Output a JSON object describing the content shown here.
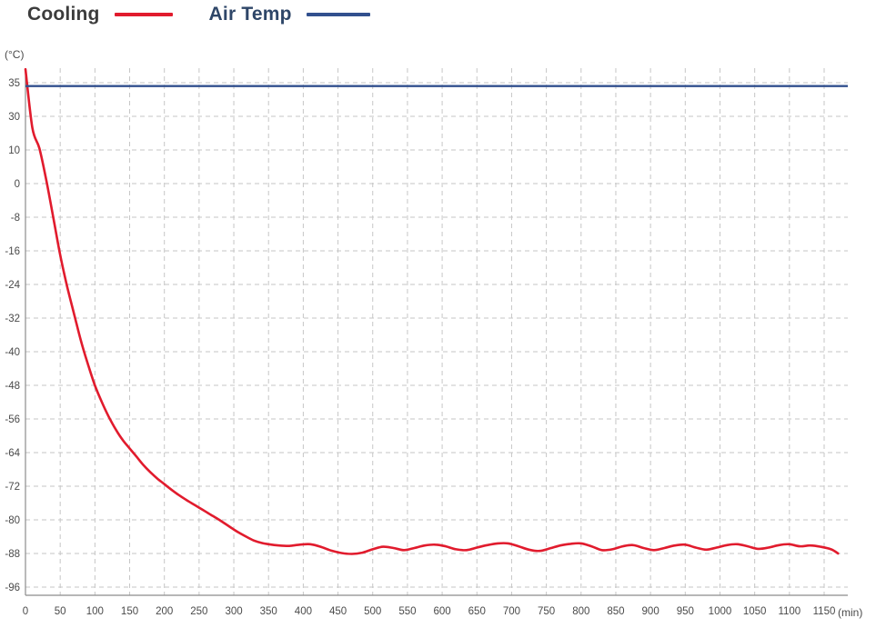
{
  "legend": {
    "cooling_label": "Cooling",
    "air_temp_label": "Air Temp",
    "cooling_text_color": "#3c3c3c",
    "air_temp_text_color": "#2e4668"
  },
  "axes": {
    "y_unit": "(°C)",
    "x_unit": "(min)"
  },
  "colors": {
    "cooling": "#e11b2d",
    "air_temp": "#32508e",
    "grid": "#c6c6c6",
    "axis": "#8c8c8c",
    "tick_text": "#4a4a4a"
  },
  "chart_data": {
    "type": "line",
    "title": "",
    "xlabel": "(min)",
    "ylabel": "(°C)",
    "grid": "dashed",
    "legend_position": "top-left",
    "x_ticks": [
      0,
      50,
      100,
      150,
      200,
      250,
      300,
      350,
      400,
      450,
      500,
      550,
      600,
      650,
      700,
      750,
      800,
      850,
      900,
      950,
      1000,
      1050,
      1100,
      1150
    ],
    "y_ticks": [
      35,
      30,
      10,
      0,
      -8,
      -16,
      -24,
      -32,
      -40,
      -48,
      -56,
      -64,
      -72,
      -80,
      -88,
      -96
    ],
    "series": [
      {
        "name": "Cooling",
        "color_key": "cooling",
        "points": [
          [
            0,
            37
          ],
          [
            10,
            23
          ],
          [
            20,
            11
          ],
          [
            30,
            1
          ],
          [
            40,
            -8
          ],
          [
            50,
            -17
          ],
          [
            60,
            -24.5
          ],
          [
            70,
            -31
          ],
          [
            80,
            -37.5
          ],
          [
            90,
            -43
          ],
          [
            100,
            -48
          ],
          [
            110,
            -52
          ],
          [
            120,
            -55.5
          ],
          [
            130,
            -58.5
          ],
          [
            140,
            -61
          ],
          [
            150,
            -63
          ],
          [
            160,
            -65
          ],
          [
            170,
            -67
          ],
          [
            180,
            -68.7
          ],
          [
            190,
            -70.2
          ],
          [
            200,
            -71.5
          ],
          [
            210,
            -72.8
          ],
          [
            220,
            -74
          ],
          [
            230,
            -75.1
          ],
          [
            240,
            -76.1
          ],
          [
            250,
            -77.1
          ],
          [
            260,
            -78.1
          ],
          [
            270,
            -79.1
          ],
          [
            280,
            -80.1
          ],
          [
            290,
            -81.2
          ],
          [
            300,
            -82.3
          ],
          [
            310,
            -83.3
          ],
          [
            320,
            -84.2
          ],
          [
            330,
            -85
          ],
          [
            340,
            -85.5
          ],
          [
            350,
            -85.8
          ],
          [
            365,
            -86.1
          ],
          [
            380,
            -86.2
          ],
          [
            395,
            -85.9
          ],
          [
            410,
            -85.8
          ],
          [
            425,
            -86.4
          ],
          [
            440,
            -87.3
          ],
          [
            455,
            -87.9
          ],
          [
            470,
            -88.1
          ],
          [
            485,
            -87.8
          ],
          [
            500,
            -87
          ],
          [
            515,
            -86.4
          ],
          [
            530,
            -86.7
          ],
          [
            545,
            -87.2
          ],
          [
            560,
            -86.7
          ],
          [
            575,
            -86.1
          ],
          [
            590,
            -85.9
          ],
          [
            605,
            -86.3
          ],
          [
            620,
            -87
          ],
          [
            635,
            -87.2
          ],
          [
            650,
            -86.6
          ],
          [
            665,
            -86
          ],
          [
            680,
            -85.6
          ],
          [
            695,
            -85.6
          ],
          [
            710,
            -86.3
          ],
          [
            725,
            -87.1
          ],
          [
            740,
            -87.4
          ],
          [
            755,
            -86.8
          ],
          [
            770,
            -86.1
          ],
          [
            785,
            -85.7
          ],
          [
            800,
            -85.6
          ],
          [
            815,
            -86.3
          ],
          [
            830,
            -87.2
          ],
          [
            845,
            -87
          ],
          [
            860,
            -86.3
          ],
          [
            875,
            -86
          ],
          [
            890,
            -86.7
          ],
          [
            905,
            -87.2
          ],
          [
            920,
            -86.7
          ],
          [
            935,
            -86.1
          ],
          [
            950,
            -85.9
          ],
          [
            965,
            -86.6
          ],
          [
            980,
            -87.1
          ],
          [
            995,
            -86.6
          ],
          [
            1010,
            -86
          ],
          [
            1025,
            -85.8
          ],
          [
            1040,
            -86.3
          ],
          [
            1055,
            -86.9
          ],
          [
            1070,
            -86.6
          ],
          [
            1085,
            -86
          ],
          [
            1100,
            -85.8
          ],
          [
            1115,
            -86.3
          ],
          [
            1130,
            -86.1
          ],
          [
            1145,
            -86.4
          ],
          [
            1160,
            -87
          ],
          [
            1170,
            -88
          ]
        ]
      },
      {
        "name": "Air Temp",
        "color_key": "air_temp",
        "constant_value": 34.5
      }
    ]
  }
}
